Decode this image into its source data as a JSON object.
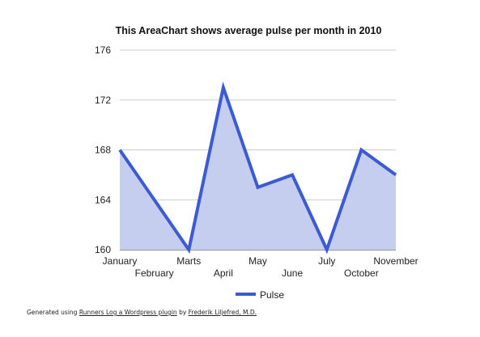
{
  "chart_data": {
    "type": "area",
    "title": "This AreaChart shows average pulse per month in 2010",
    "categories": [
      "January",
      "February",
      "Marts",
      "April",
      "May",
      "June",
      "July",
      "October",
      "November"
    ],
    "series": [
      {
        "name": "Pulse",
        "values": [
          168,
          164,
          160,
          173,
          165,
          166,
          160,
          168,
          166
        ]
      }
    ],
    "ylim": [
      160,
      176
    ],
    "yticks": [
      160,
      164,
      168,
      172,
      176
    ],
    "ytick_labels": [
      "160",
      "164",
      "168",
      "172",
      "176"
    ],
    "xlabel": "",
    "ylabel": "",
    "grid": true,
    "legend_position": "bottom",
    "colors": {
      "line": "#3b5bd5",
      "fill": "#c5ceef",
      "grid": "#cccccc",
      "axis": "#333333"
    }
  },
  "footer": {
    "prefix": "Generated using ",
    "plugin_link": "Runners Log a Wordpress plugin",
    "middle": " by ",
    "author_link": "Frederik Liljefred, M.D."
  }
}
